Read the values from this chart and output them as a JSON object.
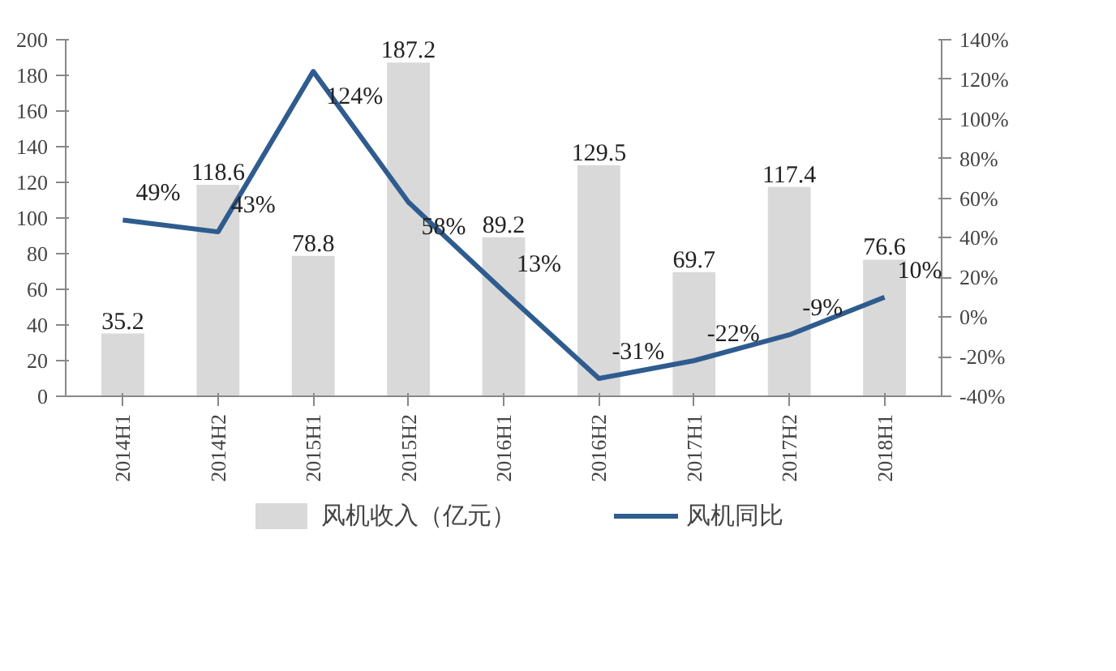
{
  "chart_data": {
    "type": "bar",
    "categories": [
      "2014H1",
      "2014H2",
      "2015H1",
      "2015H2",
      "2016H1",
      "2016H2",
      "2017H1",
      "2017H2",
      "2018H1"
    ],
    "series": [
      {
        "name": "风机收入（亿元）",
        "color": "#d9d9d9",
        "values": [
          35.2,
          118.6,
          78.8,
          187.2,
          89.2,
          129.5,
          69.7,
          117.4,
          76.6
        ]
      },
      {
        "name": "风机同比",
        "type": "line",
        "axis": "y2",
        "color": "#2f5c8f",
        "values": [
          49,
          43,
          124,
          58,
          13,
          -31,
          -22,
          -9,
          10
        ],
        "value_labels": [
          "49%",
          "43%",
          "124%",
          "58%",
          "13%",
          "-31%",
          "-22%",
          "-9%",
          "10%"
        ]
      }
    ],
    "data_labels": true,
    "ylim": [
      0,
      200
    ],
    "yticks": [
      0,
      20,
      40,
      60,
      80,
      100,
      120,
      140,
      160,
      180,
      200
    ],
    "y2lim": [
      -40,
      140
    ],
    "y2ticks": [
      {
        "value": -40,
        "label": "-40%"
      },
      {
        "value": -20,
        "label": "-20%"
      },
      {
        "value": 0,
        "label": "0%"
      },
      {
        "value": 20,
        "label": "20%"
      },
      {
        "value": 40,
        "label": "40%"
      },
      {
        "value": 60,
        "label": "60%"
      },
      {
        "value": 80,
        "label": "80%"
      },
      {
        "value": 100,
        "label": "100%"
      },
      {
        "value": 120,
        "label": "120%"
      },
      {
        "value": 140,
        "label": "140%"
      }
    ],
    "grid": false,
    "legend": "bottom"
  }
}
